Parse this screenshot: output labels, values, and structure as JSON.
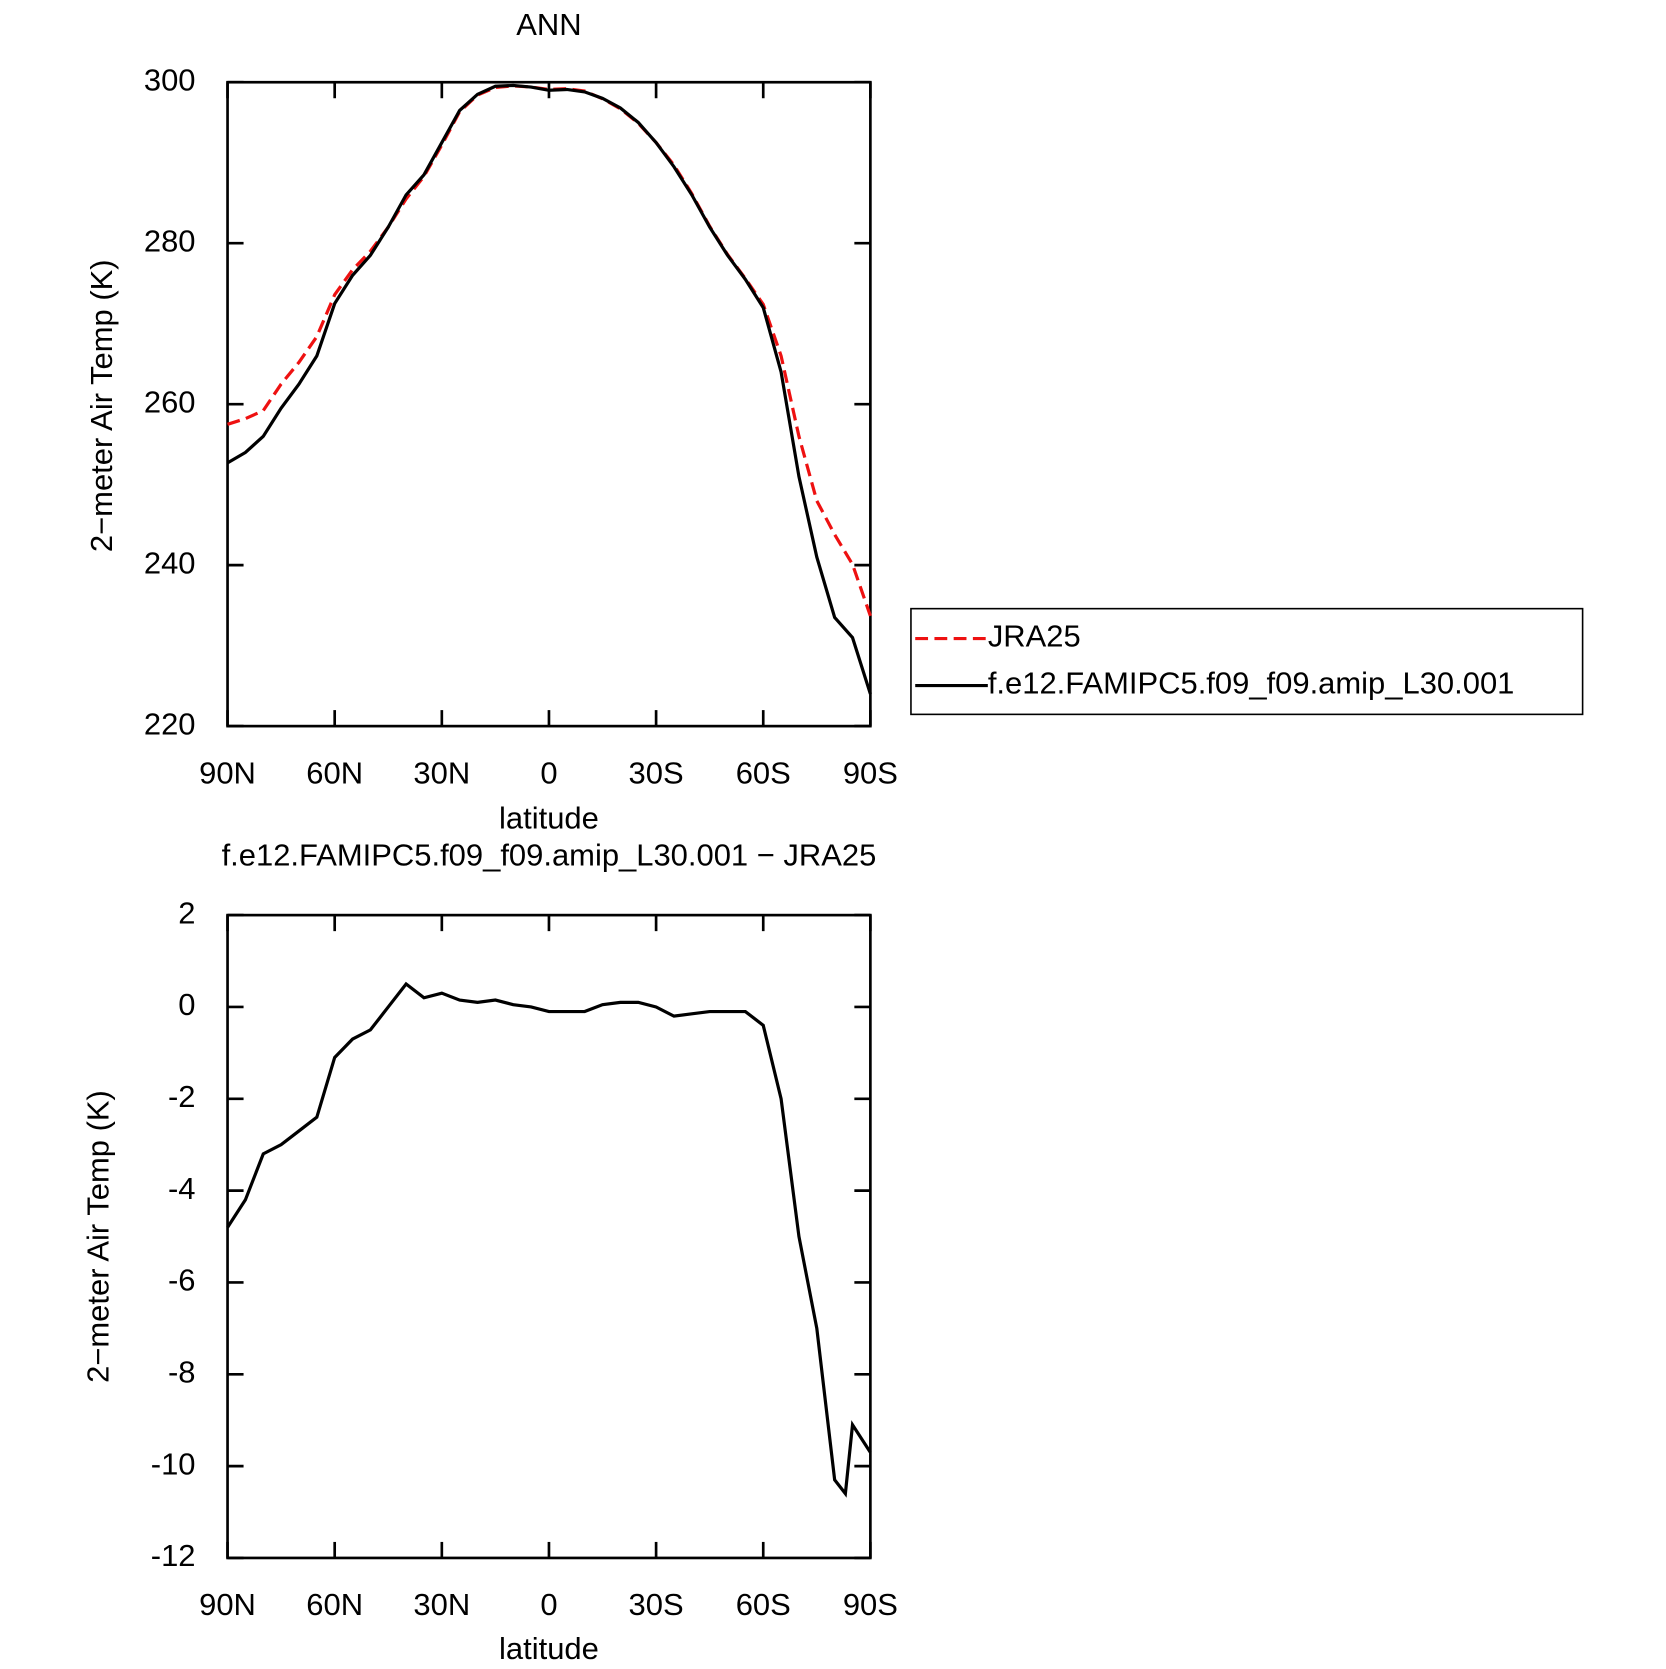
{
  "chart_data": [
    {
      "type": "line",
      "title": "ANN",
      "xlabel": "latitude",
      "ylabel": "2−meter Air Temp (K)",
      "x": [
        90,
        85,
        80,
        75,
        70,
        65,
        60,
        55,
        50,
        45,
        40,
        35,
        30,
        25,
        20,
        15,
        10,
        5,
        0,
        -5,
        -10,
        -15,
        -20,
        -25,
        -30,
        -35,
        -40,
        -45,
        -50,
        -55,
        -60,
        -65,
        -70,
        -75,
        -80,
        -85,
        -90
      ],
      "xlim": [
        90,
        -90
      ],
      "xticks": [
        {
          "value": 90,
          "label": "90N"
        },
        {
          "value": 60,
          "label": "60N"
        },
        {
          "value": 30,
          "label": "30N"
        },
        0,
        {
          "value": -30,
          "label": "30S"
        },
        {
          "value": -60,
          "label": "60S"
        },
        {
          "value": -90,
          "label": "90S"
        }
      ],
      "ylim": [
        220,
        300
      ],
      "yticks": [
        220,
        240,
        260,
        280,
        300
      ],
      "legend": "right",
      "series": [
        {
          "name": "JRA25",
          "color": "#ee1111",
          "style": "dashed",
          "values": [
            257.5,
            258.2,
            259.2,
            262.5,
            265.2,
            268.4,
            273.6,
            276.7,
            279,
            282,
            285.5,
            288.3,
            292.2,
            296.35,
            298.4,
            299.35,
            299.55,
            299.4,
            299.1,
            299.2,
            298.9,
            297.95,
            296.7,
            294.9,
            292.5,
            289.7,
            286.15,
            282.1,
            278.6,
            275.6,
            272.4,
            266,
            256,
            248,
            243.8,
            240.1,
            233.7
          ]
        },
        {
          "name": "f.e12.FAMIPC5.f09_f09.amip_L30.001",
          "color": "#000000",
          "style": "solid",
          "values": [
            252.7,
            254,
            256,
            259.5,
            262.5,
            266,
            272.5,
            276,
            278.5,
            282,
            286,
            288.5,
            292.5,
            296.5,
            298.5,
            299.5,
            299.6,
            299.4,
            299,
            299.1,
            298.8,
            298,
            296.8,
            295,
            292.5,
            289.5,
            286,
            282,
            278.5,
            275.5,
            272,
            264,
            251,
            241,
            233.5,
            231,
            224
          ]
        }
      ]
    },
    {
      "type": "line",
      "title": "f.e12.FAMIPC5.f09_f09.amip_L30.001 − JRA25",
      "xlabel": "latitude",
      "ylabel": "2−meter Air Temp (K)",
      "x": [
        90,
        85,
        80,
        75,
        70,
        65,
        60,
        55,
        50,
        45,
        40,
        35,
        30,
        25,
        20,
        15,
        10,
        5,
        0,
        -5,
        -10,
        -15,
        -20,
        -25,
        -30,
        -35,
        -40,
        -45,
        -50,
        -55,
        -60,
        -65,
        -70,
        -75,
        -80,
        -83,
        -85,
        -90
      ],
      "xlim": [
        90,
        -90
      ],
      "xticks": [
        {
          "value": 90,
          "label": "90N"
        },
        {
          "value": 60,
          "label": "60N"
        },
        {
          "value": 30,
          "label": "30N"
        },
        0,
        {
          "value": -30,
          "label": "30S"
        },
        {
          "value": -60,
          "label": "60S"
        },
        {
          "value": -90,
          "label": "90S"
        }
      ],
      "ylim": [
        -12,
        2
      ],
      "yticks": [
        -12,
        -10,
        -8,
        -6,
        -4,
        -2,
        0,
        2
      ],
      "series": [
        {
          "color": "#000000",
          "style": "solid",
          "values": [
            -4.8,
            -4.2,
            -3.2,
            -3.0,
            -2.7,
            -2.4,
            -1.1,
            -0.7,
            -0.5,
            0.0,
            0.5,
            0.2,
            0.3,
            0.15,
            0.1,
            0.15,
            0.05,
            0.0,
            -0.1,
            -0.1,
            -0.1,
            0.05,
            0.1,
            0.1,
            0.0,
            -0.2,
            -0.15,
            -0.1,
            -0.1,
            -0.1,
            -0.4,
            -2.0,
            -5.0,
            -7.0,
            -10.3,
            -10.6,
            -9.1,
            -9.7
          ]
        }
      ]
    }
  ]
}
